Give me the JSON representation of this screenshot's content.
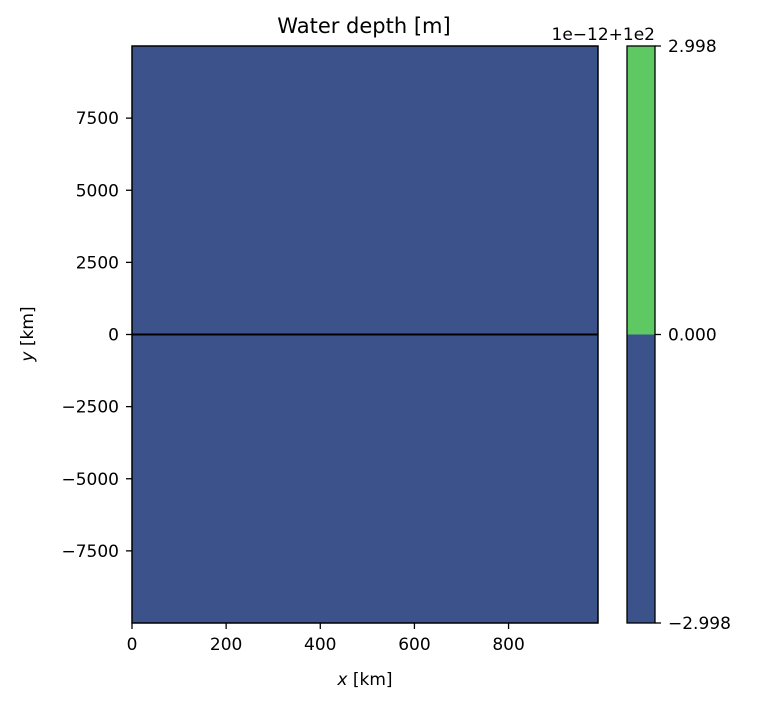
{
  "colors": {
    "field_fill": "#3b528b",
    "upper_colorbar_fill": "#5ec962",
    "axis_stroke": "#000000",
    "background": "#ffffff"
  },
  "chart_data": {
    "type": "heatmap",
    "title": "Water depth [m]",
    "xlabel": "x [km]",
    "ylabel": "y [km]",
    "xlim": [
      0,
      990
    ],
    "ylim": [
      -10000,
      10000
    ],
    "x_ticks": [
      0,
      200,
      400,
      600,
      800
    ],
    "x_tick_labels": [
      "0",
      "200",
      "400",
      "600",
      "800"
    ],
    "y_ticks": [
      -7500,
      -5000,
      -2500,
      0,
      2500,
      5000,
      7500
    ],
    "y_tick_labels": [
      "−7500",
      "−5000",
      "−2500",
      "0",
      "2500",
      "5000",
      "7500"
    ],
    "field": {
      "description_value": 100,
      "color": "#3b528b"
    },
    "contour_line": {
      "y": 0,
      "color": "#000000"
    },
    "colorbar": {
      "offset_label": "1e−12+1e2",
      "tick_values": [
        -2.998,
        0.0,
        2.998
      ],
      "tick_labels": [
        "−2.998",
        "0.000",
        "2.998"
      ],
      "levels": [
        {
          "from": -2.998,
          "to": 0.0,
          "color": "#3b528b"
        },
        {
          "from": 0.0,
          "to": 2.998,
          "color": "#5ec962"
        }
      ]
    }
  }
}
